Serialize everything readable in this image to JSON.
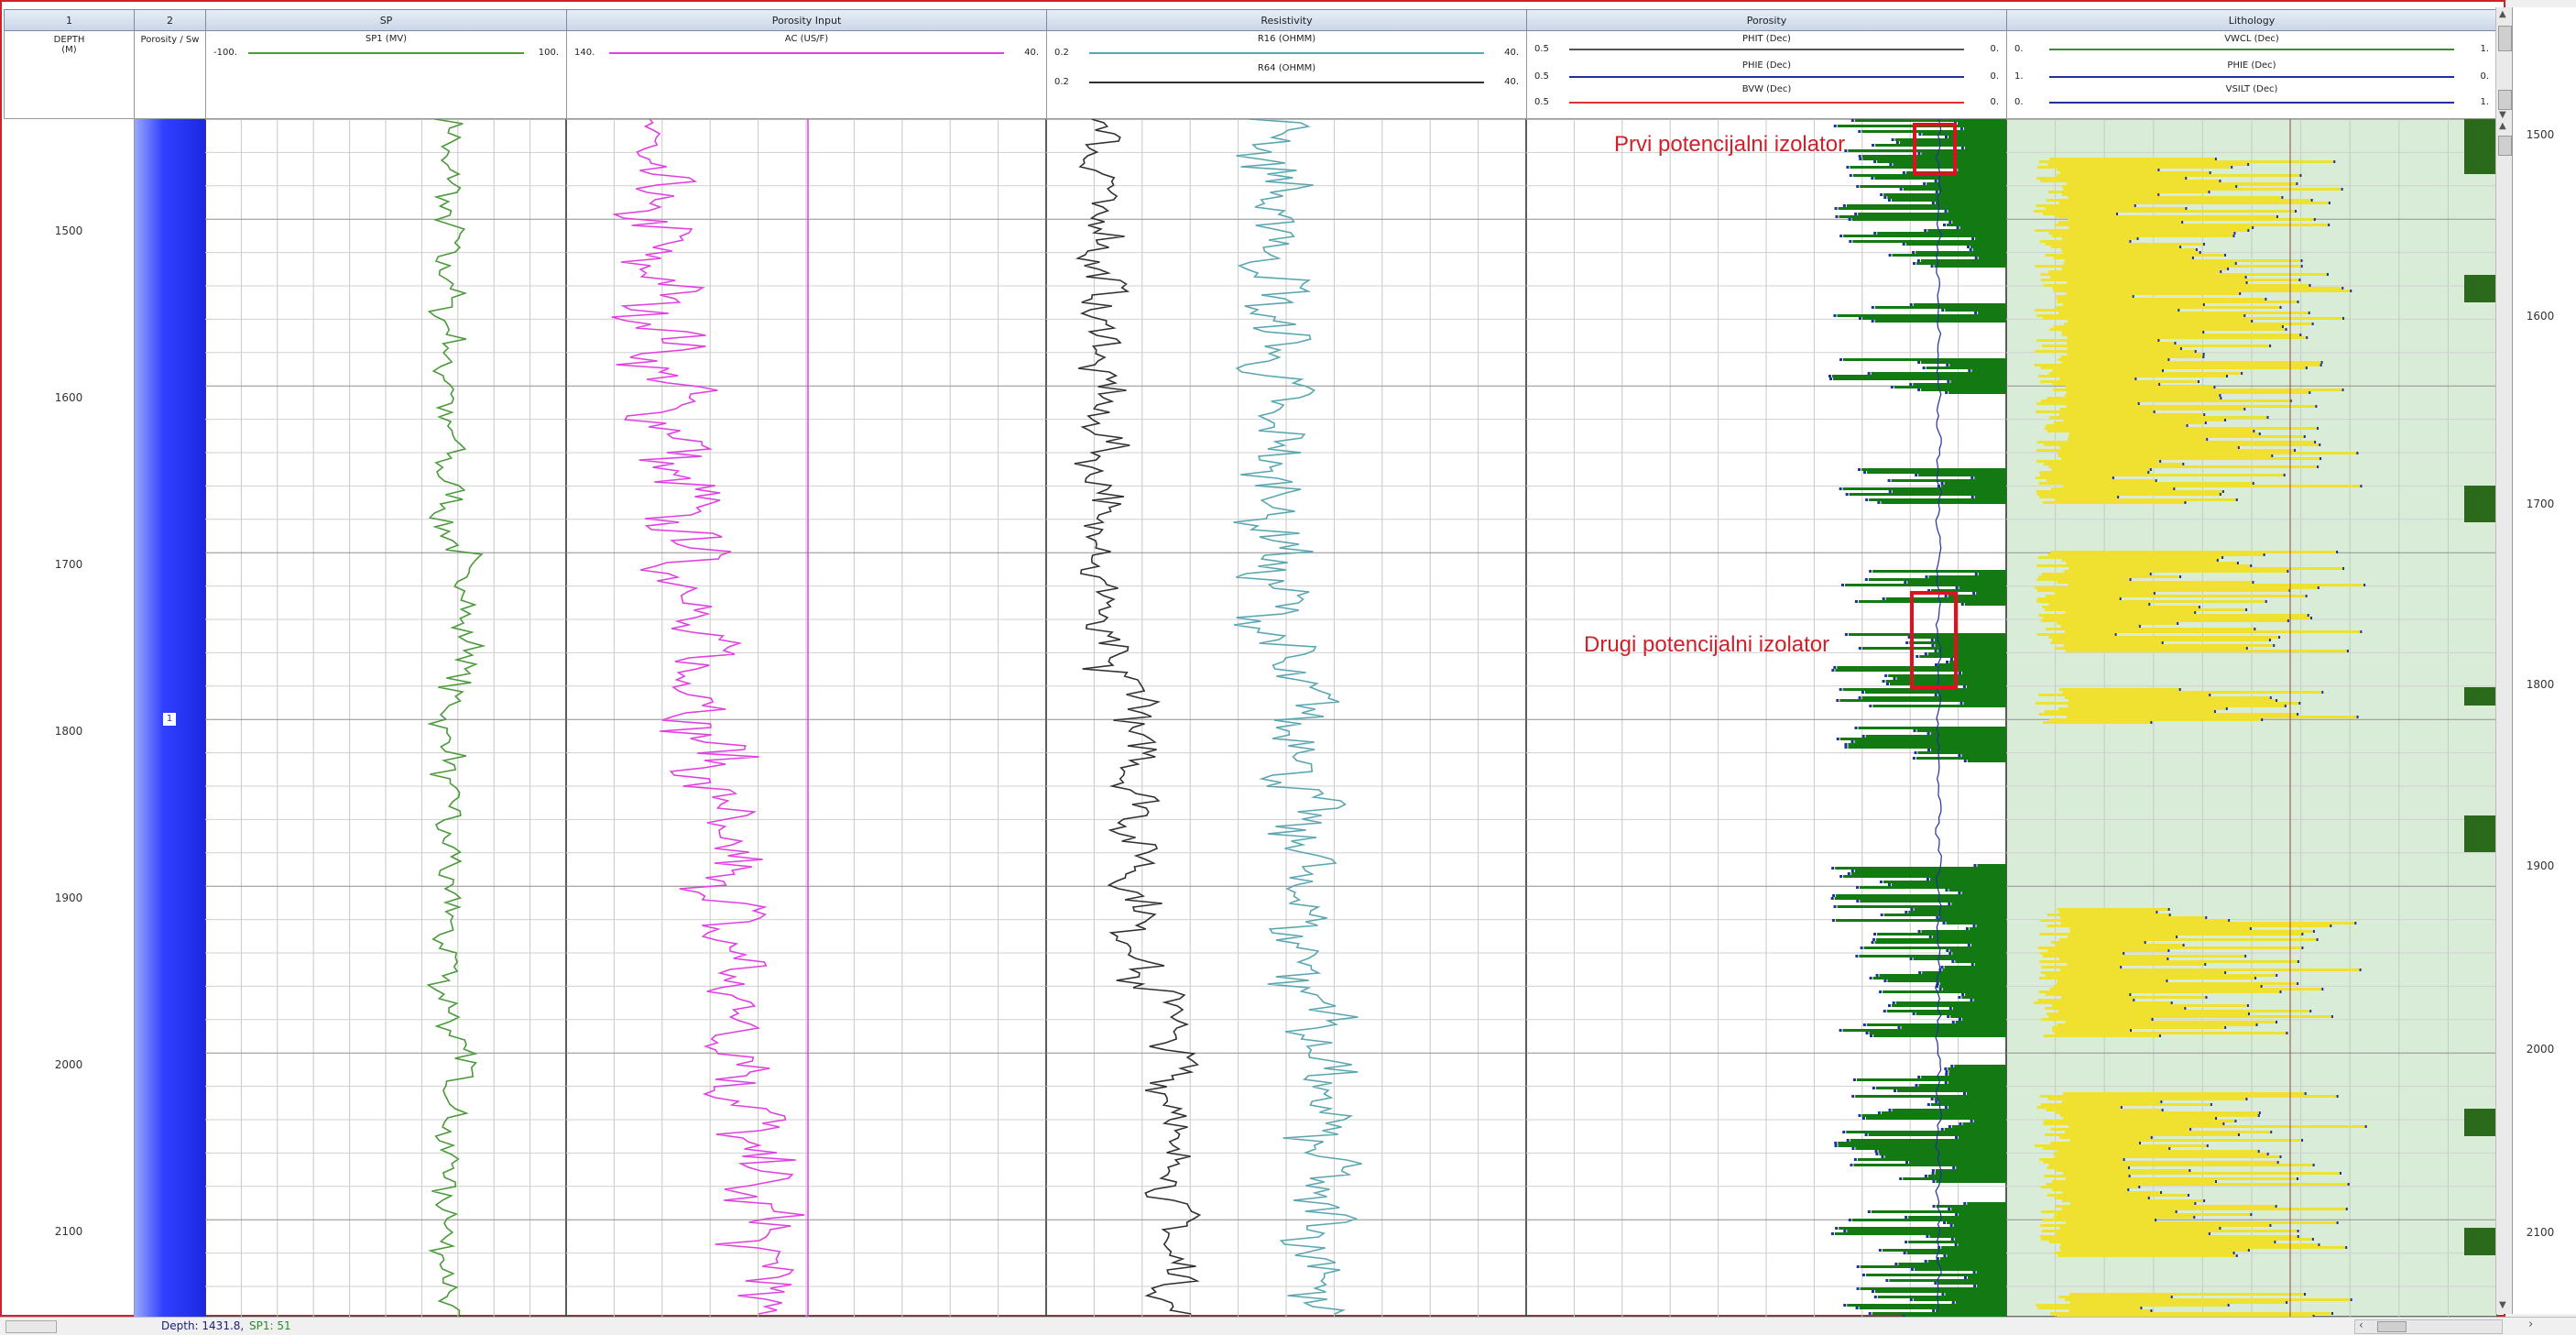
{
  "tracks": [
    {
      "num": "1",
      "title": "DEPTH (M)"
    },
    {
      "num": "2",
      "title": "Porosity / Sw"
    },
    {
      "num": "",
      "title": "SP"
    },
    {
      "num": "",
      "title": "Porosity Input"
    },
    {
      "num": "",
      "title": "Resistivity"
    },
    {
      "num": "",
      "title": "Porosity"
    },
    {
      "num": "",
      "title": "Lithology"
    }
  ],
  "headers": {
    "depth": {
      "line1": "DEPTH",
      "line2": "(M)"
    },
    "porsw": {
      "label": "Porosity / Sw"
    },
    "sp": {
      "curve": "SP1 (MV)",
      "lo": "-100.",
      "hi": "100.",
      "color": "#4a9a3a"
    },
    "ac": {
      "curve": "AC (US/F)",
      "lo": "140.",
      "hi": "40.",
      "color": "#e040e0"
    },
    "r16": {
      "curve": "R16 (OHMM)",
      "lo": "0.2",
      "hi": "40.",
      "color": "#5aa6b0"
    },
    "r64": {
      "curve": "R64 (OHMM)",
      "lo": "0.2",
      "hi": "40.",
      "color": "#303030"
    },
    "phit": {
      "curve": "PHIT (Dec)",
      "lo": "0.5",
      "hi": "0.",
      "color": "#555555"
    },
    "phie": {
      "curve": "PHIE (Dec)",
      "lo": "0.5",
      "hi": "0.",
      "color": "#2030a0"
    },
    "bvw": {
      "curve": "BVW (Dec)",
      "lo": "0.5",
      "hi": "0.",
      "color": "#e03030"
    },
    "vwcl": {
      "curve": "VWCL (Dec)",
      "lo": "0.",
      "hi": "1.",
      "color": "#3a8a3a"
    },
    "phie2": {
      "curve": "PHIE (Dec)",
      "lo": "1.",
      "hi": "0.",
      "color": "#2030a0"
    },
    "vsilt": {
      "curve": "VSILT (Dec)",
      "lo": "0.",
      "hi": "1.",
      "color": "#2030a0"
    }
  },
  "depth_ticks_left": [
    "1500",
    "1600",
    "1700",
    "1800",
    "1900",
    "2000",
    "2100"
  ],
  "depth_ticks_right": [
    "1500",
    "1600",
    "1700",
    "1800",
    "1900",
    "2000",
    "2100"
  ],
  "zone_marker": "1",
  "annotations": {
    "first": "Prvi potencijalni izolator",
    "second": "Drugi potencijalni izolator"
  },
  "status": {
    "depth": "Depth: 1431.8,",
    "sp": "SP1: 51"
  },
  "colors": {
    "accent_red": "#d0202a",
    "zone_blue": "#2030e0",
    "green_fill": "#137a13",
    "yellow_fill": "#f0e030"
  }
}
